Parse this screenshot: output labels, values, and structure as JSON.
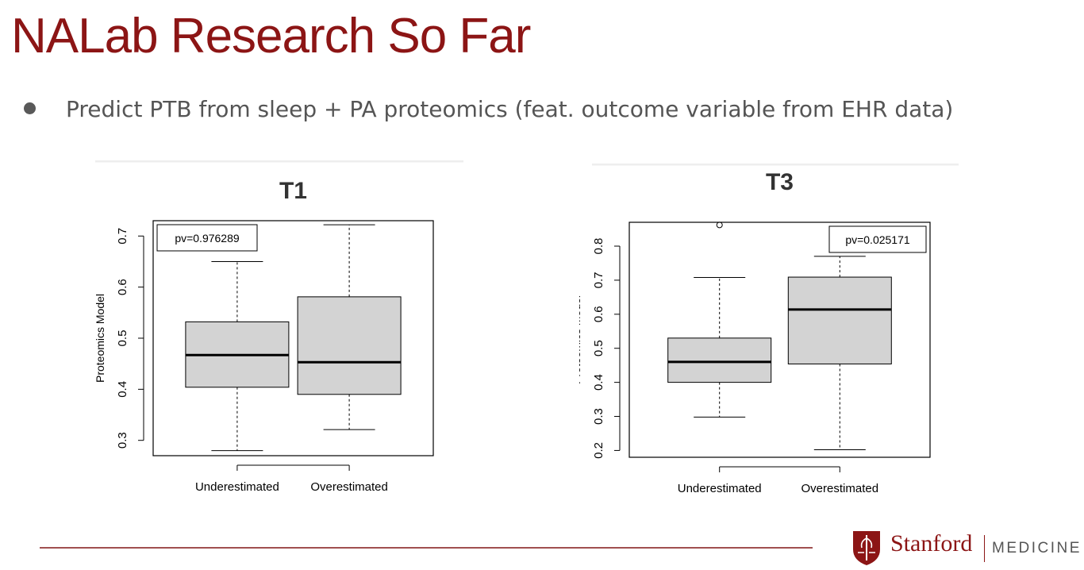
{
  "slide": {
    "title": "NALab Research So Far",
    "bullet": "Predict PTB from sleep + PA proteomics (feat. outcome variable from EHR data)"
  },
  "footer": {
    "logo_word": "Stanford",
    "logo_sub": "MEDICINE"
  },
  "colors": {
    "title": "#8c1515",
    "box_fill": "#d3d3d3",
    "footer_line": "#a05050"
  },
  "chart_data": [
    {
      "type": "boxplot",
      "title": "T1",
      "ylabel": "Proteomics Model",
      "xlabel": "",
      "ylim": [
        0.27,
        0.73
      ],
      "yticks": [
        0.3,
        0.4,
        0.5,
        0.6,
        0.7
      ],
      "categories": [
        "Underestimated",
        "Overestimated"
      ],
      "boxes": [
        {
          "category": "Underestimated",
          "whisker_low": 0.28,
          "q1": 0.404,
          "median": 0.467,
          "q3": 0.532,
          "whisker_high": 0.65,
          "outliers": []
        },
        {
          "category": "Overestimated",
          "whisker_low": 0.321,
          "q1": 0.39,
          "median": 0.453,
          "q3": 0.581,
          "whisker_high": 0.722,
          "outliers": []
        }
      ],
      "annotation": "pv=0.976289",
      "annotation_position": "top-left"
    },
    {
      "type": "boxplot",
      "title": "T3",
      "ylabel": "Proteomics Model",
      "xlabel": "",
      "ylim": [
        0.18,
        0.87
      ],
      "yticks": [
        0.2,
        0.3,
        0.4,
        0.5,
        0.6,
        0.7,
        0.8
      ],
      "categories": [
        "Underestimated",
        "Overestimated"
      ],
      "boxes": [
        {
          "category": "Underestimated",
          "whisker_low": 0.298,
          "q1": 0.4,
          "median": 0.46,
          "q3": 0.53,
          "whisker_high": 0.708,
          "outliers": [
            0.862
          ]
        },
        {
          "category": "Overestimated",
          "whisker_low": 0.202,
          "q1": 0.454,
          "median": 0.614,
          "q3": 0.709,
          "whisker_high": 0.77,
          "outliers": []
        }
      ],
      "annotation": "pv=0.025171",
      "annotation_position": "top-right"
    }
  ]
}
